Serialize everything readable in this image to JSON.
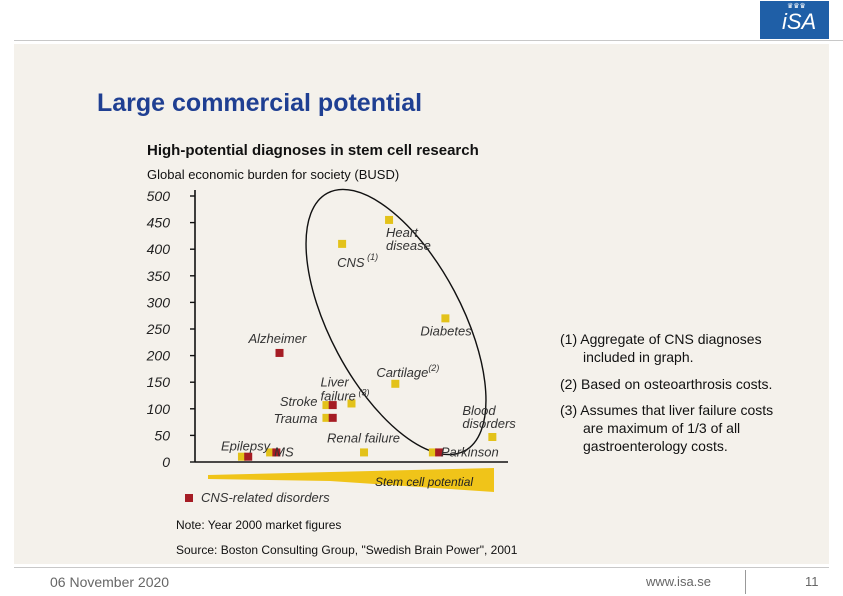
{
  "slide": {
    "logo_text": "iSA",
    "logo_crown": "♛♛♛",
    "title": "Large commercial potential",
    "subtitle": "High-potential diagnoses in stem cell research",
    "note": "Note: Year 2000 market figures",
    "source": "Source: Boston Consulting Group, \"Swedish Brain Power\", 2001",
    "footer_date": "06 November 2020",
    "footer_url": "www.isa.se",
    "page_number": "11"
  },
  "footnotes": [
    {
      "line1": "(1) Aggregate of CNS diagnoses",
      "line2": "included in graph."
    },
    {
      "line1": "(2) Based on osteoarthrosis costs.",
      "line2": ""
    },
    {
      "line1": "(3) Assumes that liver failure costs",
      "line2": "are maximum of 1/3 of all",
      "line3": "gastroenterology costs."
    }
  ],
  "chart_data": {
    "type": "scatter",
    "title": "High-potential diagnoses in stem cell research",
    "ylabel": "Global economic burden for society (BUSD)",
    "xlabel": "Stem cell potential",
    "ylim": [
      0,
      500
    ],
    "yticks": [
      0,
      50,
      100,
      150,
      200,
      250,
      300,
      350,
      400,
      450,
      500
    ],
    "grid": false,
    "x_is_ordinal": true,
    "points": [
      {
        "label": "Heart disease",
        "label_line1": "Heart",
        "label_line2": "disease",
        "y": 455,
        "x": 6.2,
        "cns": false
      },
      {
        "label": "CNS(1)",
        "y": 410,
        "x": 4.7,
        "cns": false
      },
      {
        "label": "Diabetes",
        "y": 270,
        "x": 8.0,
        "cns": false
      },
      {
        "label": "Alzheimer",
        "y": 205,
        "x": 2.7,
        "cns": true
      },
      {
        "label": "Cartilage(2)",
        "y": 147,
        "x": 6.4,
        "cns": false
      },
      {
        "label": "Liver failure(3)",
        "label_line1": "Liver",
        "label_line2": "failure(3)",
        "y": 110,
        "x": 5.0,
        "cns": false
      },
      {
        "label": "Stroke",
        "y": 107,
        "x": 4.2,
        "cns": false
      },
      {
        "label": "Stroke",
        "y": 107,
        "x": 4.4,
        "cns": true
      },
      {
        "label": "Trauma",
        "y": 83,
        "x": 4.2,
        "cns": false
      },
      {
        "label": "Trauma",
        "y": 83,
        "x": 4.4,
        "cns": true
      },
      {
        "label": "Blood disorders",
        "label_line1": "Blood",
        "label_line2": "disorders",
        "y": 47,
        "x": 9.5,
        "cns": false
      },
      {
        "label": "Epilepsy",
        "y": 10,
        "x": 1.5,
        "cns": false
      },
      {
        "label": "Epilepsy",
        "y": 10,
        "x": 1.7,
        "cns": true
      },
      {
        "label": "MS",
        "y": 18,
        "x": 2.4,
        "cns": false
      },
      {
        "label": "MS",
        "y": 18,
        "x": 2.6,
        "cns": true
      },
      {
        "label": "Renal failure",
        "y": 18,
        "x": 5.4,
        "cns": false
      },
      {
        "label": "Parkinson",
        "y": 18,
        "x": 7.6,
        "cns": false
      },
      {
        "label": "Parkinson",
        "y": 18,
        "x": 7.8,
        "cns": true
      }
    ],
    "legend": {
      "label": "CNS-related disorders",
      "color": "#a51c24"
    },
    "colors": {
      "default": "#e3c21a",
      "cns": "#a51c24"
    }
  }
}
